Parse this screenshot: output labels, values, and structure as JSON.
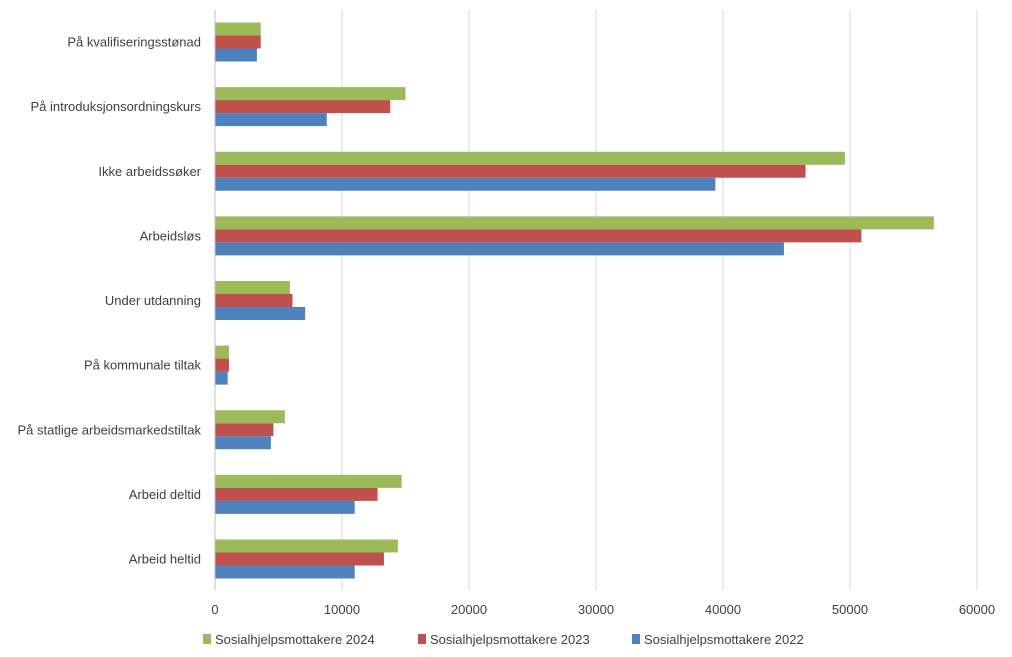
{
  "chart_data": {
    "type": "bar",
    "orientation": "horizontal",
    "title": "",
    "xlabel": "",
    "ylabel": "",
    "xlim": [
      0,
      60000
    ],
    "x_ticks": [
      0,
      10000,
      20000,
      30000,
      40000,
      50000,
      60000
    ],
    "grid": true,
    "legend_position": "bottom",
    "categories": [
      "På kvalifiseringsstønad",
      "På introduksjonsordningskurs",
      "Ikke arbeidssøker",
      "Arbeidsløs",
      "Under utdanning",
      "På kommunale tiltak",
      "På statlige arbeidsmarkedstiltak",
      "Arbeid deltid",
      "Arbeid heltid"
    ],
    "series": [
      {
        "name": "Sosialhjelpsmottakere 2024",
        "color": "#9bbb59",
        "values": [
          3600,
          15000,
          49600,
          56600,
          5900,
          1100,
          5500,
          14700,
          14400
        ]
      },
      {
        "name": "Sosialhjelpsmottakere 2023",
        "color": "#c0504d",
        "values": [
          3600,
          13800,
          46500,
          50900,
          6100,
          1100,
          4600,
          12800,
          13300
        ]
      },
      {
        "name": "Sosialhjelpsmottakere 2022",
        "color": "#4f81bd",
        "values": [
          3300,
          8800,
          39400,
          44800,
          7100,
          1000,
          4400,
          11000,
          11000
        ]
      }
    ]
  }
}
